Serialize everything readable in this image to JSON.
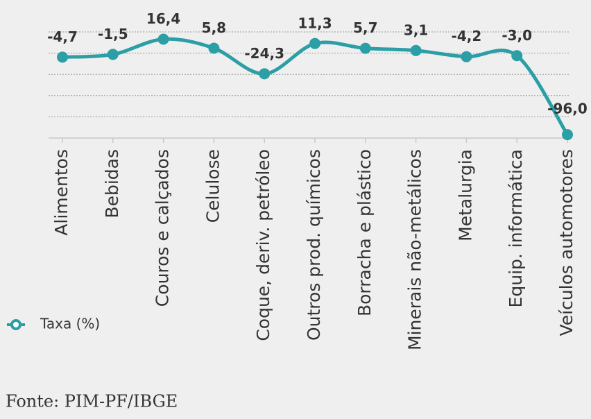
{
  "chart_data": {
    "type": "line",
    "categories": [
      "Alimentos",
      "Bebidas",
      "Couros e calçados",
      "Celulose",
      "Coque, deriv. petróleo",
      "Outros prod. químicos",
      "Borracha e plástico",
      "Minerais não-metálicos",
      "Metalurgia",
      "Equip. informática",
      "Veículos automotores"
    ],
    "series": [
      {
        "name": "Taxa (%)",
        "color": "#2b9ea6",
        "values": [
          -4.7,
          -1.5,
          16.4,
          5.8,
          -24.3,
          11.3,
          5.7,
          3.1,
          -4.2,
          -3.0,
          -96.0
        ],
        "value_labels": [
          "-4,7",
          "-1,5",
          "16,4",
          "5,8",
          "-24,3",
          "11,3",
          "5,7",
          "3,1",
          "-4,2",
          "-3,0",
          "-96,0"
        ]
      }
    ],
    "ylim": [
      -100,
      25
    ],
    "yticks": [
      -100,
      -75,
      -50,
      -25,
      0,
      25
    ],
    "grid": true,
    "legend": "bottom-left",
    "source": "Fonte: PIM-PF/IBGE"
  }
}
